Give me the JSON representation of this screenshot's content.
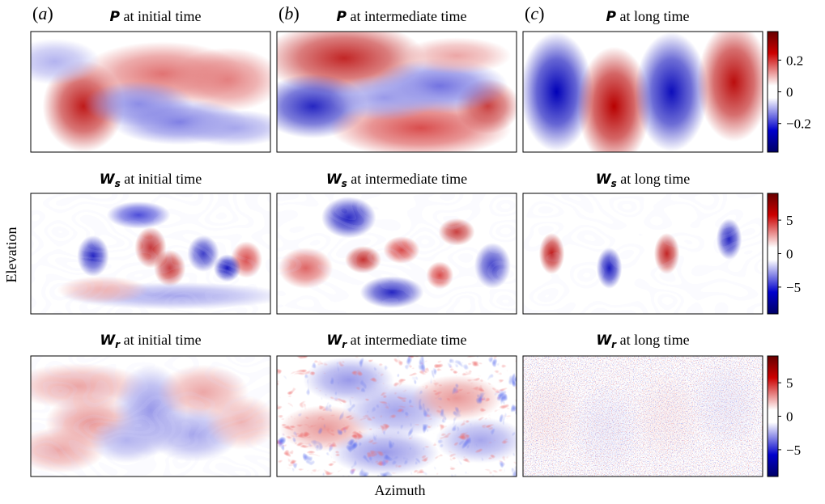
{
  "chart_data": {
    "type": "heatmap",
    "xlabel": "Azimuth",
    "ylabel": "Elevation",
    "colormap": {
      "low": "#000066",
      "mid": "#ffffff",
      "high": "#660000"
    },
    "columns": [
      {
        "letter": "(a)",
        "time": "at initial time"
      },
      {
        "letter": "(b)",
        "time": "at intermediate time"
      },
      {
        "letter": "(c)",
        "time": "at long time"
      }
    ],
    "rows": [
      {
        "symbol": "P",
        "subscript": "",
        "colorbar": {
          "range": [
            -0.38,
            0.38
          ],
          "ticks": [
            0.2,
            0,
            -0.2
          ],
          "tick_labels": [
            "0.2",
            "0",
            "−0.2"
          ]
        },
        "panels": [
          {
            "blobs": [
              [
                0.22,
                0.62,
                0.09,
                0.2,
                0.9
              ],
              [
                0.55,
                0.35,
                0.18,
                0.14,
                0.55
              ],
              [
                0.82,
                0.4,
                0.12,
                0.14,
                0.5
              ],
              [
                0.45,
                0.6,
                0.12,
                0.1,
                -0.45
              ],
              [
                0.62,
                0.75,
                0.15,
                0.1,
                -0.5
              ],
              [
                0.1,
                0.25,
                0.1,
                0.1,
                -0.3
              ],
              [
                0.85,
                0.8,
                0.12,
                0.08,
                -0.35
              ]
            ]
          },
          {
            "blobs": [
              [
                0.28,
                0.22,
                0.18,
                0.16,
                0.85
              ],
              [
                0.15,
                0.62,
                0.12,
                0.14,
                -0.85
              ],
              [
                0.6,
                0.8,
                0.2,
                0.13,
                0.7
              ],
              [
                0.88,
                0.62,
                0.07,
                0.12,
                0.75
              ],
              [
                0.68,
                0.45,
                0.15,
                0.12,
                -0.55
              ],
              [
                0.45,
                0.55,
                0.12,
                0.1,
                -0.4
              ],
              [
                0.75,
                0.2,
                0.12,
                0.08,
                0.35
              ]
            ]
          },
          {
            "blobs": [
              [
                0.14,
                0.5,
                0.08,
                0.26,
                -1
              ],
              [
                0.38,
                0.62,
                0.08,
                0.26,
                1
              ],
              [
                0.62,
                0.5,
                0.08,
                0.26,
                -0.95
              ],
              [
                0.88,
                0.42,
                0.08,
                0.26,
                0.95
              ]
            ]
          }
        ]
      },
      {
        "symbol": "W",
        "subscript": "s",
        "colorbar": {
          "range": [
            -9,
            9
          ],
          "ticks": [
            5,
            0,
            -5
          ],
          "tick_labels": [
            "5",
            "0",
            "−5"
          ]
        },
        "panels": [
          {
            "blobs": [
              [
                0.26,
                0.52,
                0.035,
                0.09,
                -0.85
              ],
              [
                0.5,
                0.45,
                0.035,
                0.09,
                0.85
              ],
              [
                0.58,
                0.62,
                0.035,
                0.08,
                0.8
              ],
              [
                0.72,
                0.5,
                0.035,
                0.08,
                -0.75
              ],
              [
                0.9,
                0.55,
                0.035,
                0.08,
                0.7
              ],
              [
                0.45,
                0.18,
                0.07,
                0.06,
                -0.7
              ],
              [
                0.82,
                0.62,
                0.03,
                0.06,
                -0.9
              ],
              [
                0.6,
                0.85,
                0.25,
                0.06,
                -0.35
              ],
              [
                0.3,
                0.8,
                0.1,
                0.06,
                0.3
              ]
            ]
          },
          {
            "blobs": [
              [
                0.3,
                0.2,
                0.06,
                0.09,
                -0.9
              ],
              [
                0.12,
                0.62,
                0.06,
                0.09,
                0.6
              ],
              [
                0.36,
                0.55,
                0.04,
                0.06,
                0.8
              ],
              [
                0.52,
                0.47,
                0.04,
                0.06,
                0.7
              ],
              [
                0.75,
                0.32,
                0.04,
                0.06,
                0.75
              ],
              [
                0.68,
                0.68,
                0.03,
                0.06,
                0.7
              ],
              [
                0.9,
                0.6,
                0.04,
                0.1,
                -0.75
              ],
              [
                0.48,
                0.82,
                0.07,
                0.07,
                -0.85
              ]
            ]
          },
          {
            "blobs": [
              [
                0.12,
                0.5,
                0.028,
                0.09,
                0.9
              ],
              [
                0.36,
                0.62,
                0.028,
                0.09,
                -0.9
              ],
              [
                0.6,
                0.5,
                0.028,
                0.09,
                0.85
              ],
              [
                0.86,
                0.38,
                0.028,
                0.09,
                -0.85
              ]
            ]
          }
        ]
      },
      {
        "symbol": "W",
        "subscript": "r",
        "colorbar": {
          "range": [
            -9,
            9
          ],
          "ticks": [
            5,
            0,
            -5
          ],
          "tick_labels": [
            "5",
            "0",
            "−5"
          ]
        },
        "panels": [
          {
            "blobs": [
              [
                0.2,
                0.25,
                0.15,
                0.1,
                0.35
              ],
              [
                0.25,
                0.55,
                0.1,
                0.12,
                0.4
              ],
              [
                0.5,
                0.45,
                0.08,
                0.2,
                -0.4
              ],
              [
                0.72,
                0.3,
                0.1,
                0.12,
                0.35
              ],
              [
                0.68,
                0.65,
                0.1,
                0.12,
                -0.35
              ],
              [
                0.12,
                0.78,
                0.1,
                0.1,
                0.35
              ],
              [
                0.88,
                0.55,
                0.08,
                0.12,
                0.3
              ],
              [
                0.4,
                0.7,
                0.08,
                0.1,
                -0.3
              ]
            ]
          },
          {
            "blobs": [
              [
                0.3,
                0.2,
                0.1,
                0.1,
                -0.4
              ],
              [
                0.2,
                0.6,
                0.1,
                0.1,
                0.4
              ],
              [
                0.5,
                0.45,
                0.12,
                0.12,
                -0.35
              ],
              [
                0.75,
                0.35,
                0.1,
                0.1,
                0.4
              ],
              [
                0.45,
                0.8,
                0.12,
                0.1,
                -0.4
              ],
              [
                0.85,
                0.7,
                0.1,
                0.1,
                -0.35
              ]
            ]
          },
          {
            "blobs": [
              [
                0.1,
                0.5,
                0.08,
                0.2,
                0.05
              ],
              [
                0.35,
                0.6,
                0.08,
                0.2,
                -0.05
              ],
              [
                0.6,
                0.5,
                0.08,
                0.2,
                0.05
              ],
              [
                0.85,
                0.4,
                0.08,
                0.2,
                -0.05
              ]
            ]
          }
        ]
      }
    ]
  }
}
